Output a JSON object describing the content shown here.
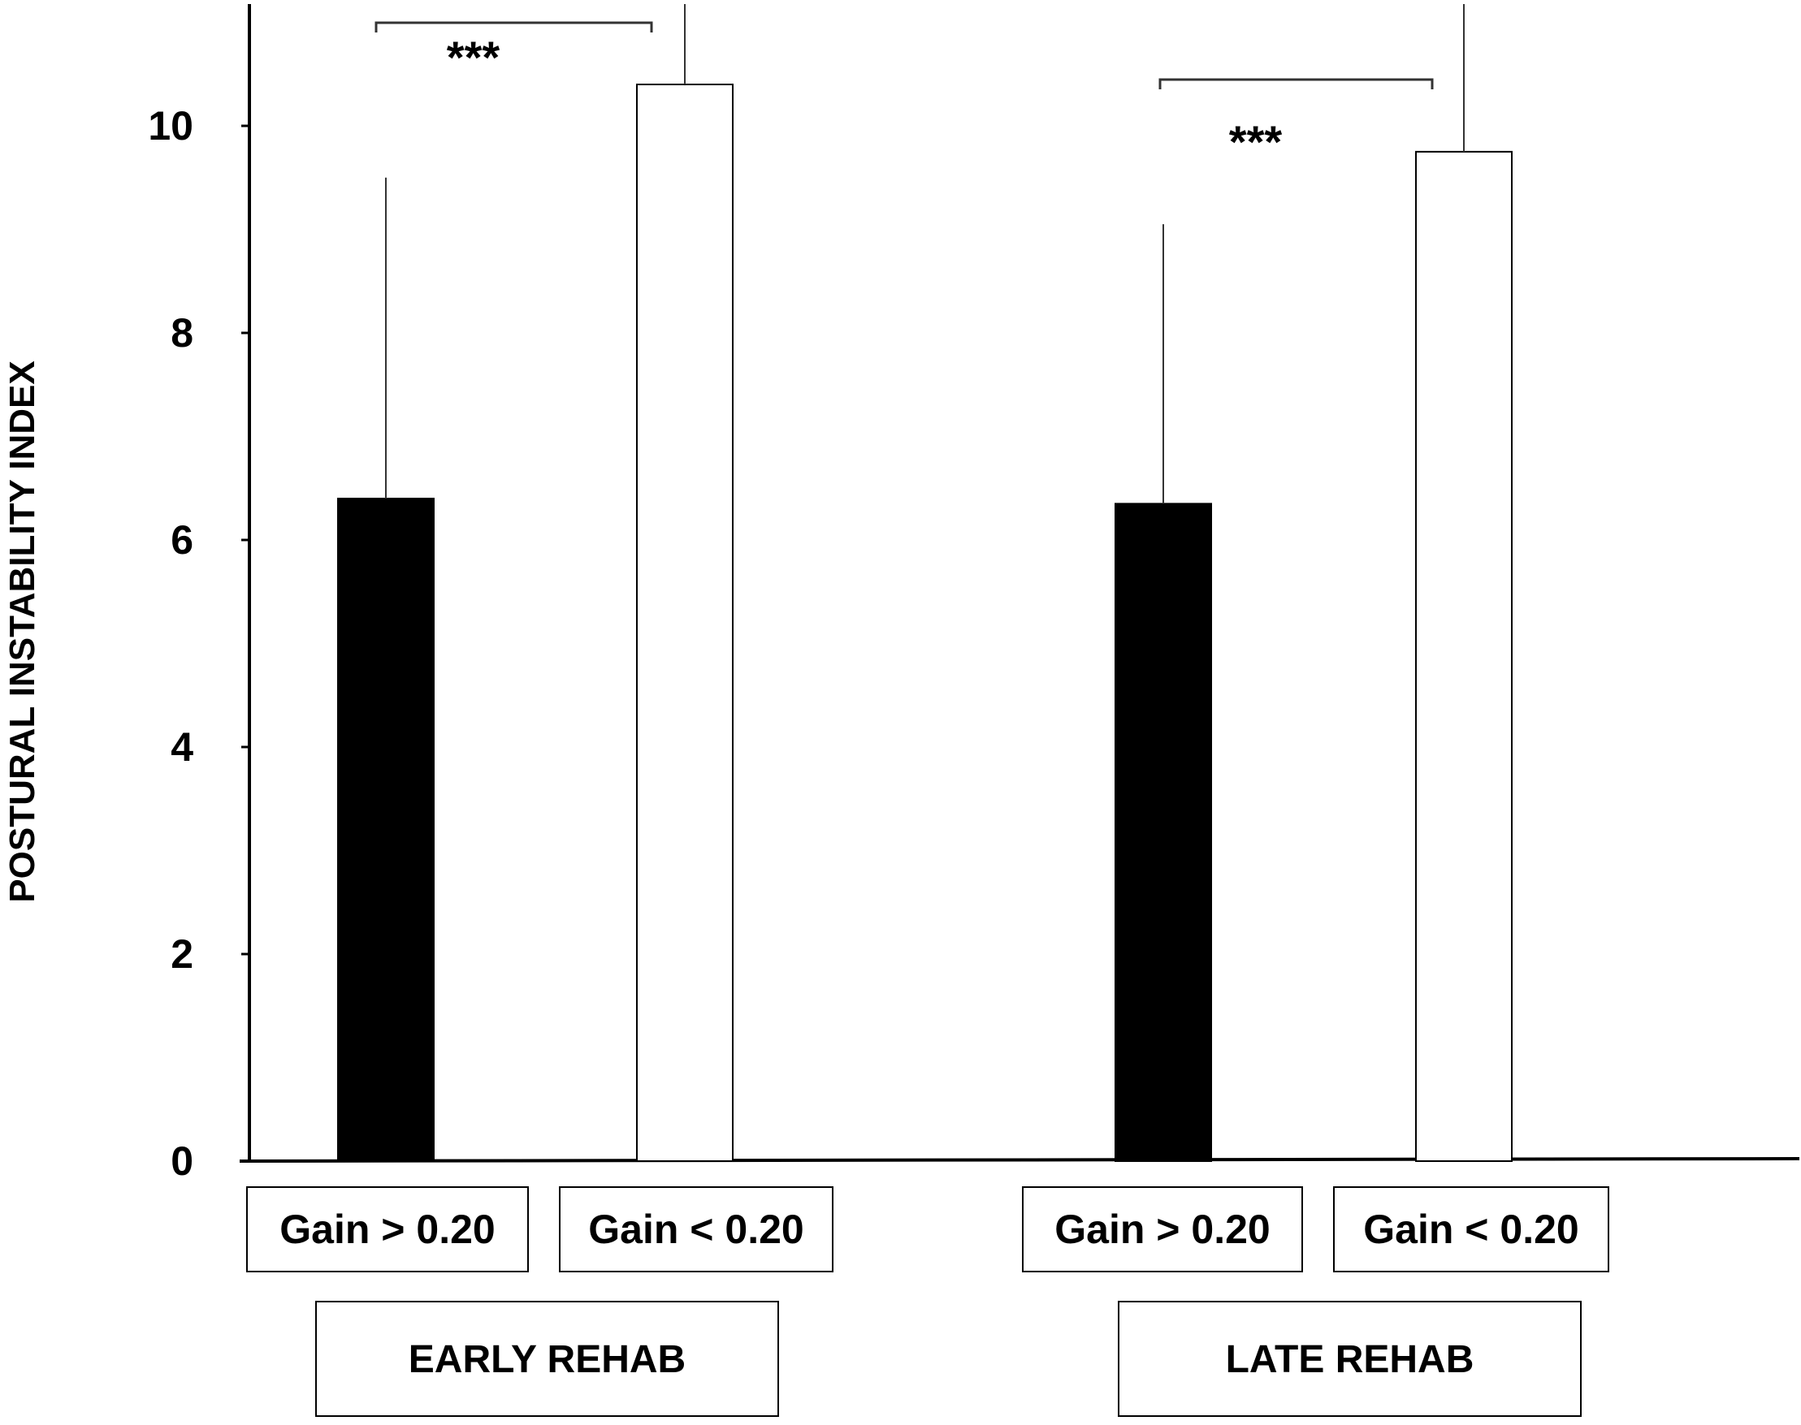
{
  "chart_data": {
    "type": "bar",
    "ylabel": "POSTURAL INSTABILITY INDEX",
    "ylim": [
      0,
      11.3
    ],
    "yticks": [
      "0",
      "2",
      "4",
      "6",
      "8",
      "10"
    ],
    "groups": [
      {
        "label": "EARLY REHAB",
        "categories": [
          "Gain > 0.20",
          "Gain < 0.20"
        ],
        "values": [
          6.4,
          10.4
        ],
        "error_upper": [
          9.5,
          11.3
        ],
        "significance": "***"
      },
      {
        "label": "LATE REHAB",
        "categories": [
          "Gain > 0.20",
          "Gain < 0.20"
        ],
        "values": [
          6.35,
          9.75
        ],
        "error_upper": [
          9.05,
          11.3
        ],
        "significance": "***"
      }
    ],
    "colors": [
      "#000000",
      "#ffffff"
    ]
  }
}
